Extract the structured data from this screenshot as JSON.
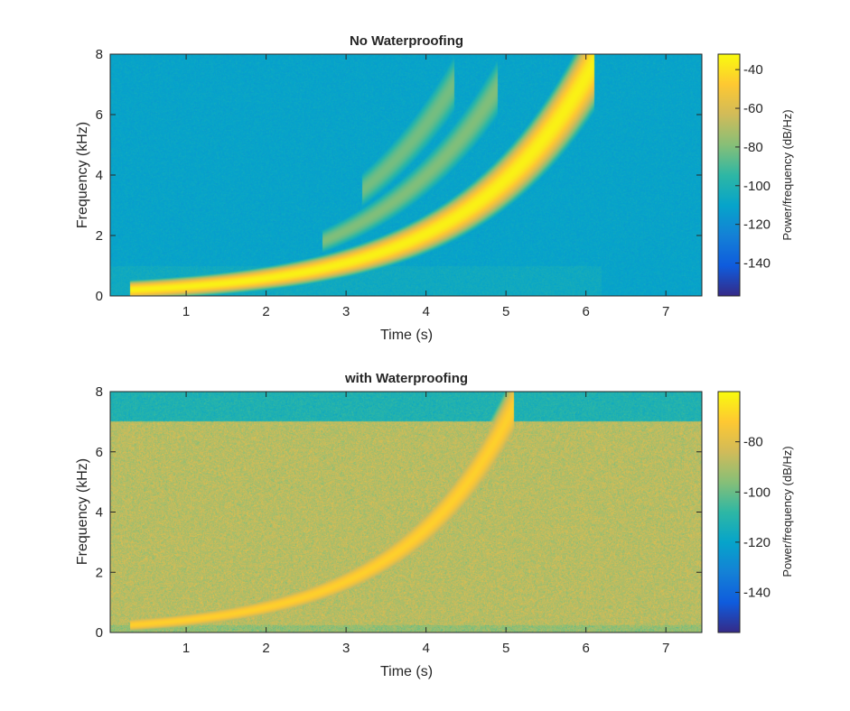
{
  "chart_data": [
    {
      "type": "heatmap",
      "title": "No Waterproofing",
      "xlabel": "Time (s)",
      "ylabel": "Frequency (kHz)",
      "xlim": [
        0.05,
        7.45
      ],
      "ylim": [
        0,
        8
      ],
      "xticks": [
        1,
        2,
        3,
        4,
        5,
        6,
        7
      ],
      "yticks": [
        0,
        2,
        4,
        6,
        8
      ],
      "grid": false,
      "colormap": "parula",
      "background_level_db": -110,
      "chirps": [
        {
          "role": "fundamental",
          "t_start": 0.3,
          "t_end": 6.1,
          "f_start_khz": 0.2,
          "f_end_khz": 7.7,
          "peak_db": -35
        },
        {
          "role": "harmonic",
          "t_start": 2.7,
          "t_end": 4.9,
          "f_start_khz": 1.8,
          "f_end_khz": 6.9,
          "peak_db": -80
        },
        {
          "role": "harmonic",
          "t_start": 3.2,
          "t_end": 4.35,
          "f_start_khz": 3.5,
          "f_end_khz": 7.0,
          "peak_db": -82
        }
      ],
      "colorbar": {
        "label": "Power/frequency (dB/Hz)",
        "range": [
          -157,
          -32
        ],
        "ticks": [
          -40,
          -60,
          -80,
          -100,
          -120,
          -140
        ]
      }
    },
    {
      "type": "heatmap",
      "title": "with Waterproofing",
      "xlabel": "Time (s)",
      "ylabel": "Frequency (kHz)",
      "xlim": [
        0.05,
        7.45
      ],
      "ylim": [
        0,
        8
      ],
      "xticks": [
        1,
        2,
        3,
        4,
        5,
        6,
        7
      ],
      "yticks": [
        0,
        2,
        4,
        6,
        8
      ],
      "grid": false,
      "colormap": "parula",
      "background_level_db": -88,
      "noise_band_upper_khz": 7.0,
      "chirps": [
        {
          "role": "fundamental",
          "t_start": 0.3,
          "t_end": 5.1,
          "f_start_khz": 0.25,
          "f_end_khz": 7.5,
          "peak_db": -70
        }
      ],
      "colorbar": {
        "label": "Power/frequency (dB/Hz)",
        "range": [
          -156,
          -60
        ],
        "ticks": [
          -80,
          -100,
          -120,
          -140
        ]
      }
    }
  ]
}
